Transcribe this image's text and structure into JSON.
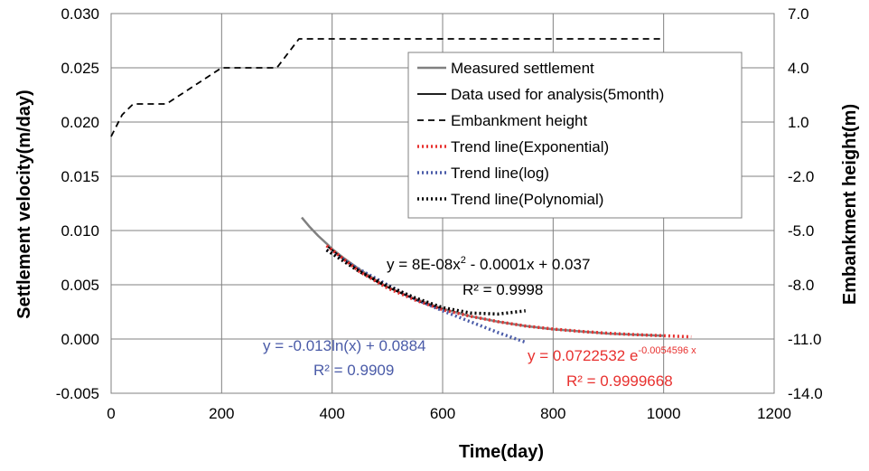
{
  "chart_data": {
    "type": "line",
    "xlabel": "Time(day)",
    "ylabel": "Settlement velocity(m/day)",
    "y2label": "Embankment height(m)",
    "xlim": [
      0,
      1200
    ],
    "ylim": [
      -0.005,
      0.03
    ],
    "y2lim": [
      -14.0,
      7.0
    ],
    "xticks": [
      "0",
      "200",
      "400",
      "600",
      "800",
      "1000",
      "1200"
    ],
    "yticks": [
      "-0.005",
      "0.000",
      "0.005",
      "0.010",
      "0.015",
      "0.020",
      "0.025",
      "0.030"
    ],
    "y2ticks": [
      "-14.0",
      "-11.0",
      "-8.0",
      "-5.0",
      "-2.0",
      "1.0",
      "4.0",
      "7.0"
    ],
    "grid": true,
    "legend_position": "top-right",
    "series": [
      {
        "name": "Measured settlement",
        "axis": "left",
        "color": "#808080",
        "style": "solid",
        "x": [
          345,
          360,
          375,
          390,
          400,
          420,
          450,
          480,
          500,
          550,
          600,
          650,
          700,
          750,
          800,
          850,
          900,
          950,
          1000
        ],
        "y": [
          0.0112,
          0.0103,
          0.0095,
          0.0088,
          0.0083,
          0.0075,
          0.0064,
          0.0054,
          0.0048,
          0.0037,
          0.0028,
          0.0021,
          0.0016,
          0.0012,
          0.0009,
          0.0007,
          0.0005,
          0.0004,
          0.0003
        ]
      },
      {
        "name": "Data used for analysis(5month)",
        "axis": "left",
        "color": "#000000",
        "style": "solid",
        "x": [
          390,
          400,
          420,
          450,
          480,
          500,
          530,
          560,
          590,
          600
        ],
        "y": [
          0.0086,
          0.0082,
          0.0074,
          0.0063,
          0.0053,
          0.0048,
          0.0041,
          0.0034,
          0.0029,
          0.0028
        ]
      },
      {
        "name": "Embankment height",
        "axis": "right",
        "color": "#000000",
        "style": "dashed",
        "x": [
          0,
          20,
          40,
          100,
          200,
          300,
          340,
          500,
          1000
        ],
        "y": [
          0.2,
          1.4,
          2.0,
          2.0,
          4.0,
          4.0,
          5.6,
          5.6,
          5.6
        ]
      },
      {
        "name": "Trend line(Exponential)",
        "axis": "left",
        "color": "#e8312f",
        "style": "dotted",
        "x": [
          390,
          450,
          500,
          550,
          600,
          650,
          700,
          750,
          800,
          850,
          900,
          950,
          1000,
          1050
        ],
        "y": [
          0.0086,
          0.0062,
          0.0047,
          0.0036,
          0.0027,
          0.0021,
          0.0016,
          0.0012,
          0.00092,
          0.0007,
          0.00053,
          0.0004,
          0.0003,
          0.0002
        ]
      },
      {
        "name": "Trend line(log)",
        "axis": "left",
        "color": "#4a5ba8",
        "style": "dotted",
        "x": [
          390,
          450,
          500,
          550,
          600,
          650,
          700,
          750
        ],
        "y": [
          0.0082,
          0.0064,
          0.005,
          0.0037,
          0.0026,
          0.0016,
          0.0006,
          -0.0003
        ]
      },
      {
        "name": "Trend line(Polynomial)",
        "axis": "left",
        "color": "#000000",
        "style": "dotted",
        "x": [
          390,
          450,
          500,
          550,
          600,
          650,
          700,
          750
        ],
        "y": [
          0.0082,
          0.0062,
          0.0049,
          0.0038,
          0.0029,
          0.0024,
          0.0023,
          0.0026
        ]
      }
    ],
    "annotations": {
      "poly_eq_a": "y = 8E-08x",
      "poly_eq_sup": "2",
      "poly_eq_b": " - 0.0001x + 0.037",
      "poly_r2": "R² = 0.9998",
      "log_eq": "y = -0.013ln(x) + 0.0884",
      "log_r2": "R² = 0.9909",
      "exp_eq": "y = 0.0722532 e",
      "exp_eq_sup": "-0.0054596 x",
      "exp_r2": "R² = 0.9999668"
    }
  }
}
